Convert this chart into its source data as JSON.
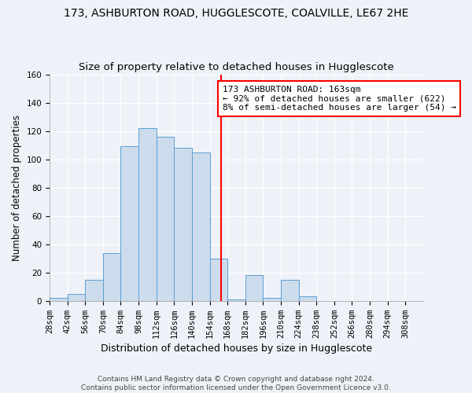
{
  "title1": "173, ASHBURTON ROAD, HUGGLESCOTE, COALVILLE, LE67 2HE",
  "title2": "Size of property relative to detached houses in Hugglescote",
  "xlabel": "Distribution of detached houses by size in Hugglescote",
  "ylabel": "Number of detached properties",
  "bin_edges": [
    28,
    42,
    56,
    70,
    84,
    98,
    112,
    126,
    140,
    154,
    168,
    182,
    196,
    210,
    224,
    238,
    252,
    266,
    280,
    294,
    308
  ],
  "bar_heights": [
    2,
    5,
    15,
    34,
    109,
    122,
    116,
    108,
    105,
    30,
    1,
    18,
    2,
    15,
    3,
    0,
    0,
    0,
    0,
    0
  ],
  "bar_color": "#ccdcec",
  "bar_edgecolor": "#5a9fd4",
  "vline_x": 163,
  "vline_color": "red",
  "annotation_text": "173 ASHBURTON ROAD: 163sqm\n← 92% of detached houses are smaller (622)\n8% of semi-detached houses are larger (54) →",
  "annotation_box_color": "white",
  "annotation_box_edgecolor": "red",
  "ylim": [
    0,
    160
  ],
  "yticks": [
    0,
    20,
    40,
    60,
    80,
    100,
    120,
    140,
    160
  ],
  "background_color": "#eef2f8",
  "footer": "Contains HM Land Registry data © Crown copyright and database right 2024.\nContains public sector information licensed under the Open Government Licence v3.0.",
  "title_fontsize": 10,
  "subtitle_fontsize": 9.5,
  "xlabel_fontsize": 9,
  "ylabel_fontsize": 8.5,
  "tick_fontsize": 7.5,
  "annotation_fontsize": 8
}
